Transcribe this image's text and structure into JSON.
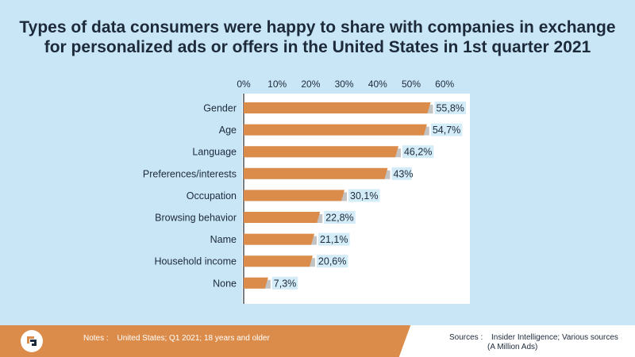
{
  "title_line1": "Types of data consumers were happy to share with companies in exchange",
  "title_line2": "for personalized ads or offers in the United States in 1st quarter 2021",
  "footer": {
    "notes_label": "Notes :",
    "notes_text": "United States; Q1 2021; 18 years and older",
    "sources_label": "Sources :",
    "sources_text": "Insider Intelligence; Various sources",
    "sources_text2": "(A Million Ads)"
  },
  "colors": {
    "bar": "#dc8c4a",
    "bar_shadow": "#a9a9a9",
    "label_bg": "#d4ebf8",
    "background": "#c9e6f7",
    "plot_bg": "#ffffff"
  },
  "chart_data": {
    "type": "bar",
    "orientation": "horizontal",
    "categories": [
      "Gender",
      "Age",
      "Language",
      "Preferences/interests",
      "Occupation",
      "Browsing behavior",
      "Name",
      "Household income",
      "None"
    ],
    "values": [
      55.8,
      54.7,
      46.2,
      43,
      30.1,
      22.8,
      21.1,
      20.6,
      7.3
    ],
    "value_labels": [
      "55,8%",
      "54,7%",
      "46,2%",
      "43%",
      "30,1%",
      "22,8%",
      "21,1%",
      "20,6%",
      "7,3%"
    ],
    "xticks": [
      0,
      10,
      20,
      30,
      40,
      50,
      60
    ],
    "xtick_labels": [
      "0%",
      "10%",
      "20%",
      "30%",
      "40%",
      "50%",
      "60%"
    ],
    "xlim": [
      0,
      68
    ],
    "axis_position": "top",
    "grid": false,
    "legend": "none"
  }
}
